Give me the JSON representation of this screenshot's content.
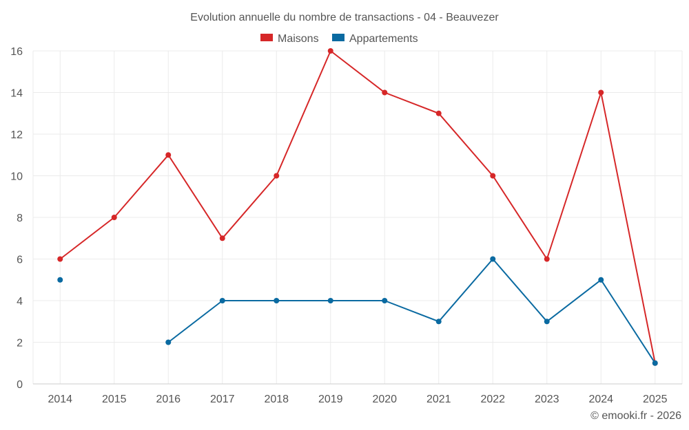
{
  "chart_data": {
    "type": "line",
    "title": "Evolution annuelle du nombre de transactions - 04 - Beauvezer",
    "categories": [
      "2014",
      "2015",
      "2016",
      "2017",
      "2018",
      "2019",
      "2020",
      "2021",
      "2022",
      "2023",
      "2024",
      "2025"
    ],
    "series": [
      {
        "name": "Maisons",
        "color": "#d62728",
        "values": [
          6,
          8,
          11,
          7,
          10,
          16,
          14,
          13,
          10,
          6,
          14,
          1
        ]
      },
      {
        "name": "Appartements",
        "color": "#0a6aa1",
        "values": [
          5,
          null,
          2,
          4,
          4,
          4,
          4,
          3,
          6,
          3,
          5,
          1
        ]
      }
    ],
    "ylim": [
      0,
      16
    ],
    "yticks": [
      0,
      2,
      4,
      6,
      8,
      10,
      12,
      14,
      16
    ],
    "grid": true,
    "legend": "top-center",
    "xlabel": "",
    "ylabel": ""
  },
  "credit": "© emooki.fr - 2026"
}
